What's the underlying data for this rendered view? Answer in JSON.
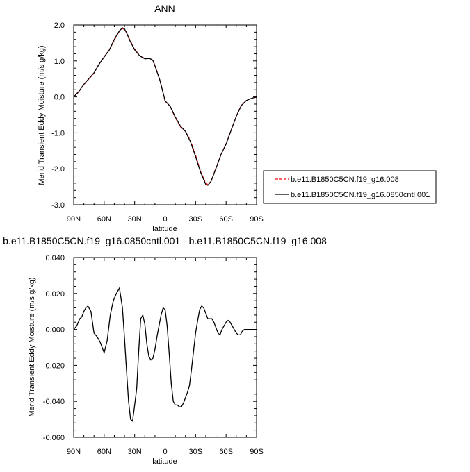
{
  "chart_data": [
    {
      "type": "line",
      "title": "ANN",
      "xlabel": "latitude",
      "ylabel": "Merid Transient Eddy Moisture (m/s g/kg)",
      "xlim": [
        90,
        -90
      ],
      "ylim": [
        -3.0,
        2.0
      ],
      "x_ticks": [
        90,
        60,
        30,
        0,
        -30,
        -60,
        -90
      ],
      "x_tick_labels": [
        "90N",
        "60N",
        "30N",
        "0",
        "30S",
        "60S",
        "90S"
      ],
      "y_ticks": [
        2.0,
        1.0,
        0.0,
        -1.0,
        -2.0,
        -3.0
      ],
      "y_tick_labels": [
        "2.0",
        "1.0",
        "0.0",
        "-1.0",
        "-2.0",
        "-3.0"
      ],
      "legend_position": "right",
      "series": [
        {
          "name": "b.e11.B1850C5CN.f19_g16.008",
          "color": "#ff0000",
          "style": "dashed",
          "x": [
            90,
            85,
            80,
            75,
            70,
            65,
            60,
            55,
            50,
            45,
            42,
            40,
            38,
            35,
            30,
            25,
            20,
            15,
            12,
            10,
            5,
            0,
            -5,
            -10,
            -15,
            -20,
            -25,
            -30,
            -35,
            -40,
            -42,
            -45,
            -50,
            -55,
            -60,
            -65,
            -70,
            -75,
            -80,
            -85,
            -90
          ],
          "y": [
            0.0,
            0.14,
            0.34,
            0.5,
            0.66,
            0.92,
            1.12,
            1.3,
            1.58,
            1.83,
            1.9,
            1.88,
            1.78,
            1.6,
            1.33,
            1.15,
            1.07,
            1.07,
            1.02,
            0.87,
            0.45,
            -0.12,
            -0.26,
            -0.58,
            -0.83,
            -0.96,
            -1.22,
            -1.62,
            -2.08,
            -2.4,
            -2.44,
            -2.35,
            -1.98,
            -1.6,
            -1.3,
            -0.92,
            -0.54,
            -0.23,
            -0.1,
            -0.04,
            -0.01
          ]
        },
        {
          "name": "b.e11.B1850C5CN.f19_g16.0850cntl.001",
          "color": "#000000",
          "style": "solid",
          "x": [
            90,
            85,
            80,
            75,
            70,
            65,
            60,
            55,
            50,
            45,
            42,
            40,
            38,
            35,
            30,
            25,
            20,
            15,
            12,
            10,
            5,
            0,
            -5,
            -10,
            -15,
            -20,
            -25,
            -30,
            -35,
            -40,
            -42,
            -45,
            -50,
            -55,
            -60,
            -65,
            -70,
            -75,
            -80,
            -85,
            -90
          ],
          "y": [
            0.0,
            0.15,
            0.35,
            0.51,
            0.67,
            0.91,
            1.11,
            1.3,
            1.6,
            1.84,
            1.92,
            1.89,
            1.79,
            1.58,
            1.31,
            1.14,
            1.06,
            1.07,
            1.01,
            0.86,
            0.45,
            -0.11,
            -0.26,
            -0.56,
            -0.81,
            -0.96,
            -1.25,
            -1.66,
            -2.1,
            -2.43,
            -2.46,
            -2.36,
            -1.99,
            -1.6,
            -1.31,
            -0.92,
            -0.54,
            -0.24,
            -0.1,
            -0.04,
            0.0
          ]
        }
      ]
    },
    {
      "type": "line",
      "title": "b.e11.B1850C5CN.f19_g16.0850cntl.001 - b.e11.B1850C5CN.f19_g16.008",
      "xlabel": "latitude",
      "ylabel": "Merid Transient Eddy Moisture (m/s g/kg)",
      "xlim": [
        90,
        -90
      ],
      "ylim": [
        -0.06,
        0.04
      ],
      "x_ticks": [
        90,
        60,
        30,
        0,
        -30,
        -60,
        -90
      ],
      "x_tick_labels": [
        "90N",
        "60N",
        "30N",
        "0",
        "30S",
        "60S",
        "90S"
      ],
      "y_ticks": [
        0.04,
        0.02,
        0.0,
        -0.02,
        -0.04,
        -0.06
      ],
      "y_tick_labels": [
        "0.040",
        "0.020",
        "0.000",
        "-0.020",
        "-0.040",
        "-0.060"
      ],
      "series": [
        {
          "name": "",
          "color": "#000000",
          "style": "solid",
          "x": [
            90,
            87,
            84,
            82,
            80,
            78,
            76,
            73,
            70,
            67,
            64,
            62,
            60,
            57,
            54,
            51,
            48,
            45,
            42,
            40,
            38,
            36,
            34,
            32,
            30,
            28,
            26,
            24,
            22,
            20,
            18,
            16,
            14,
            12,
            10,
            8,
            6,
            4,
            2,
            0,
            -2,
            -4,
            -6,
            -8,
            -10,
            -12,
            -14,
            -16,
            -18,
            -20,
            -22,
            -24,
            -26,
            -28,
            -30,
            -32,
            -34,
            -36,
            -38,
            -40,
            -42,
            -44,
            -46,
            -48,
            -50,
            -52,
            -54,
            -56,
            -58,
            -60,
            -62,
            -64,
            -66,
            -68,
            -70,
            -72,
            -74,
            -76,
            -78,
            -80,
            -82,
            -84,
            -86,
            -88,
            -90
          ],
          "y": [
            0.0,
            0.002,
            0.006,
            0.007,
            0.01,
            0.012,
            0.013,
            0.01,
            -0.002,
            -0.004,
            -0.007,
            -0.01,
            -0.013,
            -0.006,
            0.008,
            0.016,
            0.02,
            0.023,
            0.012,
            -0.005,
            -0.023,
            -0.04,
            -0.05,
            -0.051,
            -0.042,
            -0.033,
            -0.012,
            0.006,
            0.008,
            0.003,
            -0.008,
            -0.015,
            -0.017,
            -0.016,
            -0.011,
            -0.004,
            0.002,
            0.008,
            0.012,
            0.011,
            0.002,
            -0.013,
            -0.03,
            -0.04,
            -0.042,
            -0.042,
            -0.043,
            -0.043,
            -0.041,
            -0.038,
            -0.035,
            -0.031,
            -0.022,
            -0.012,
            -0.002,
            0.005,
            0.011,
            0.013,
            0.012,
            0.009,
            0.006,
            0.006,
            0.006,
            0.004,
            0.001,
            -0.002,
            -0.003,
            0.0,
            0.002,
            0.004,
            0.005,
            0.004,
            0.002,
            0.0,
            -0.002,
            -0.003,
            -0.003,
            -0.001,
            0.0,
            0.0,
            0.0,
            0.0,
            0.0,
            0.0,
            0.0
          ]
        }
      ]
    }
  ]
}
